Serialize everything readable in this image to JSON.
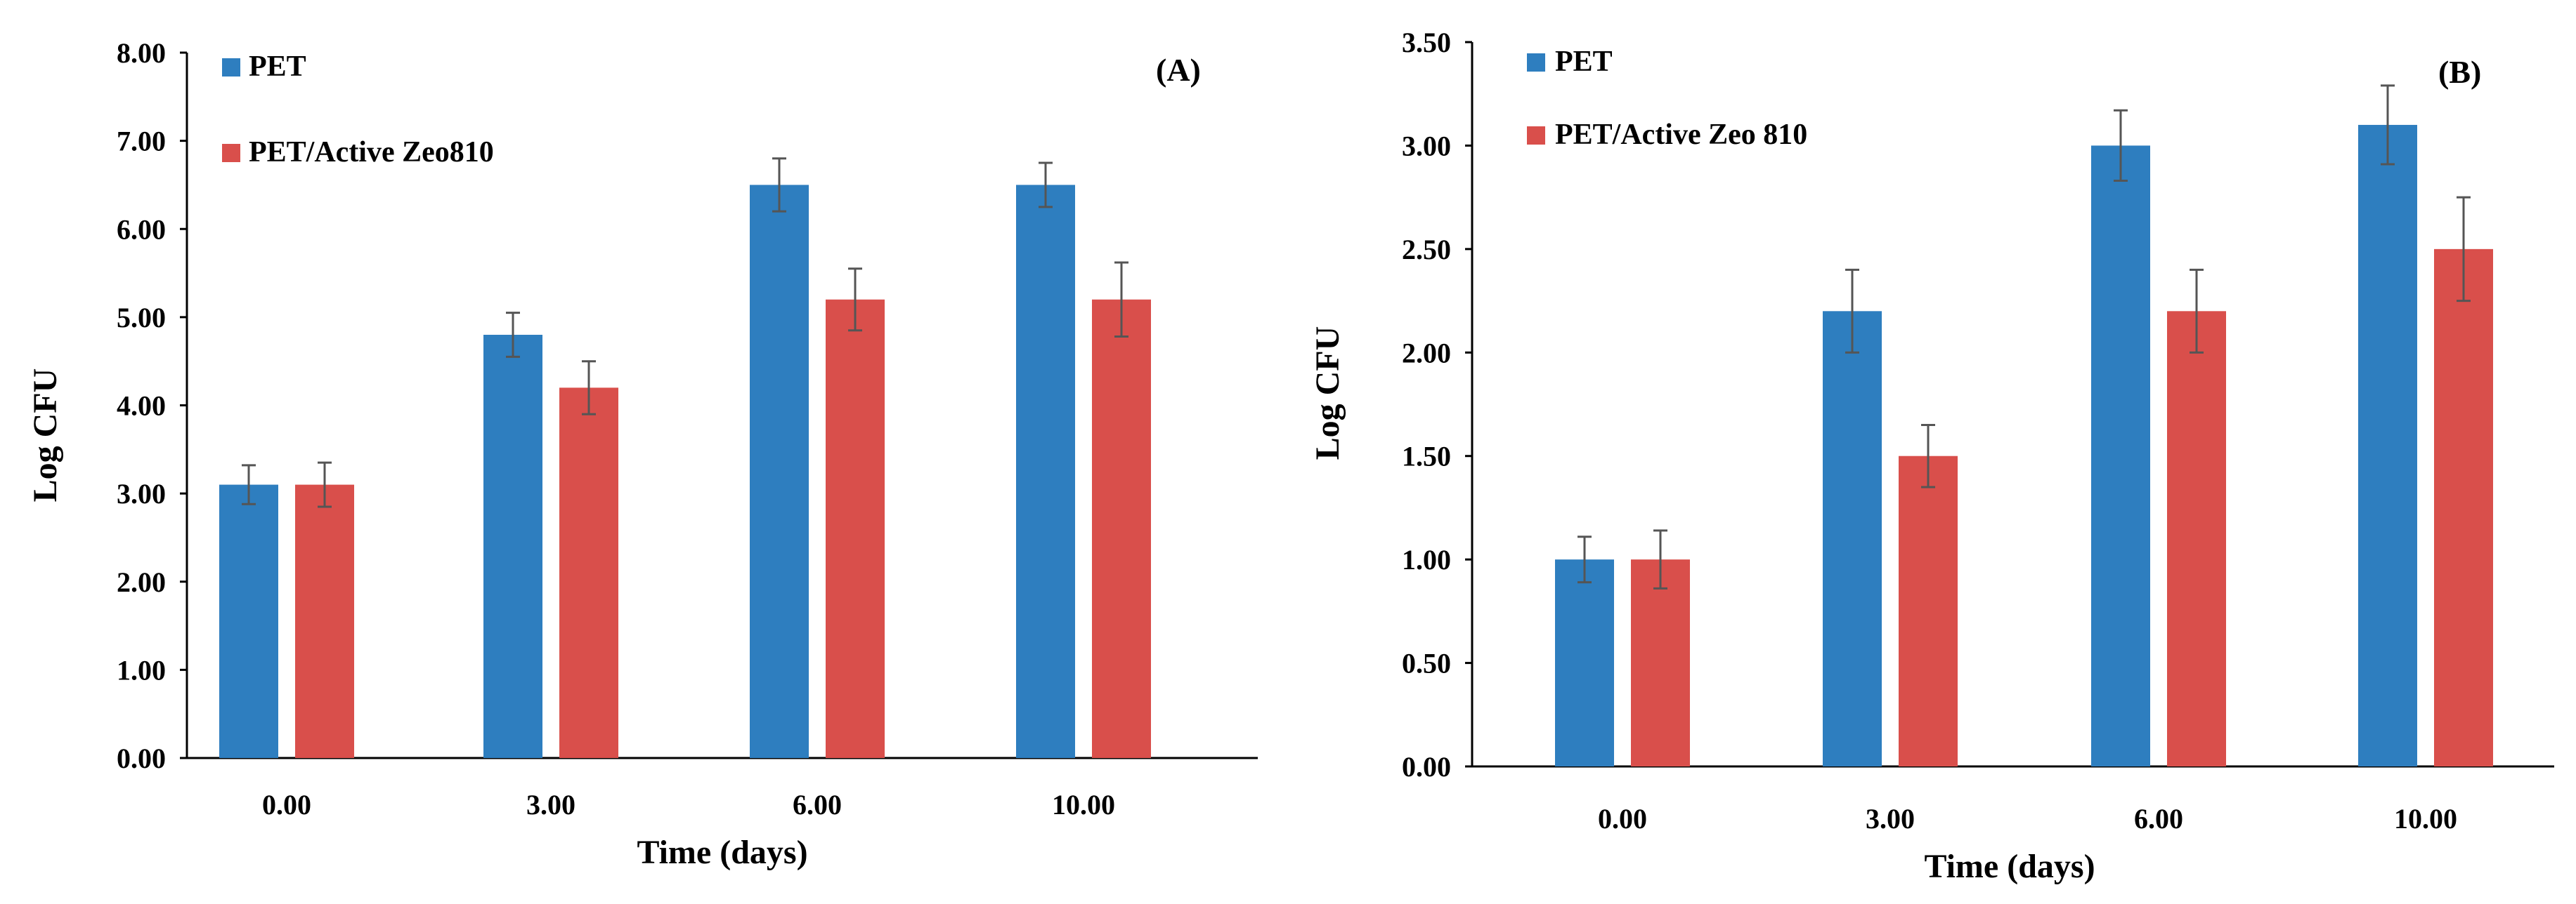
{
  "colors": {
    "pet": "#2e7ebf",
    "active": "#d94f4b",
    "axis": "#000000",
    "error": "#555555"
  },
  "chart_data": [
    {
      "type": "bar",
      "panel_label": "(A)",
      "title": "",
      "xlabel": "Time (days)",
      "ylabel": "Log CFU",
      "ylim": [
        0,
        8
      ],
      "yticks": [
        "0.00",
        "1.00",
        "2.00",
        "3.00",
        "4.00",
        "5.00",
        "6.00",
        "7.00",
        "8.00"
      ],
      "categories": [
        "0.00",
        "3.00",
        "6.00",
        "10.00"
      ],
      "legend_position": "top-left",
      "series": [
        {
          "name": "PET",
          "values": [
            3.1,
            4.8,
            6.5,
            6.5
          ],
          "errors": [
            0.22,
            0.25,
            0.3,
            0.25
          ]
        },
        {
          "name": "PET/Active Zeo810",
          "values": [
            3.1,
            4.2,
            5.2,
            5.2
          ],
          "errors": [
            0.25,
            0.3,
            0.35,
            0.42
          ]
        }
      ]
    },
    {
      "type": "bar",
      "panel_label": "(B)",
      "title": "",
      "xlabel": "Time (days)",
      "ylabel": "Log CFU",
      "ylim": [
        0,
        3.5
      ],
      "yticks": [
        "0.00",
        "0.50",
        "1.00",
        "1.50",
        "2.00",
        "2.50",
        "3.00",
        "3.50"
      ],
      "categories": [
        "0.00",
        "3.00",
        "6.00",
        "10.00"
      ],
      "legend_position": "top-left",
      "series": [
        {
          "name": "PET",
          "values": [
            1.0,
            2.2,
            3.0,
            3.1
          ],
          "errors": [
            0.11,
            0.2,
            0.17,
            0.19
          ]
        },
        {
          "name": "PET/Active Zeo 810",
          "values": [
            1.0,
            1.5,
            2.2,
            2.5
          ],
          "errors": [
            0.14,
            0.15,
            0.2,
            0.25
          ]
        }
      ]
    }
  ]
}
